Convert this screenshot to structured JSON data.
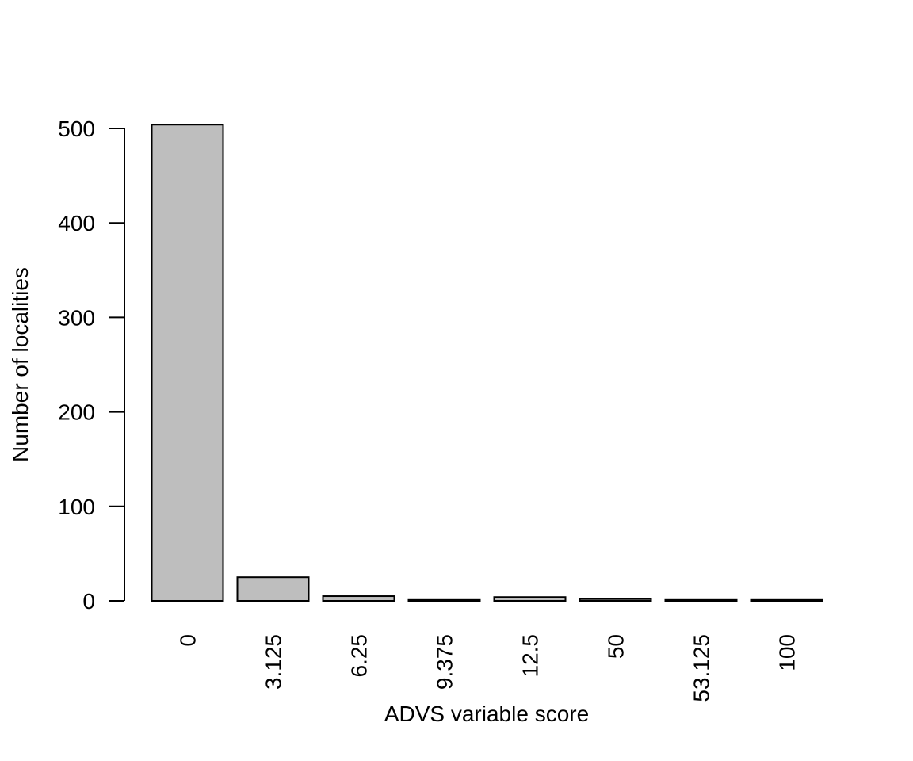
{
  "chart_data": {
    "type": "bar",
    "title": "",
    "xlabel": "ADVS variable score",
    "ylabel": "Number of localities",
    "categories": [
      "0",
      "3.125",
      "6.25",
      "9.375",
      "12.5",
      "50",
      "53.125",
      "100"
    ],
    "values": [
      504,
      25,
      5,
      1,
      4,
      2,
      1,
      1
    ],
    "ylim": [
      0,
      500
    ],
    "yticks": [
      0,
      100,
      200,
      300,
      400,
      500
    ],
    "ytick_labels": [
      "0",
      "100",
      "200",
      "300",
      "400",
      "500"
    ],
    "bar_color": "#bebebe",
    "edge_color": "#000000",
    "grid": false,
    "x_tick_label_orientation": "vertical"
  }
}
